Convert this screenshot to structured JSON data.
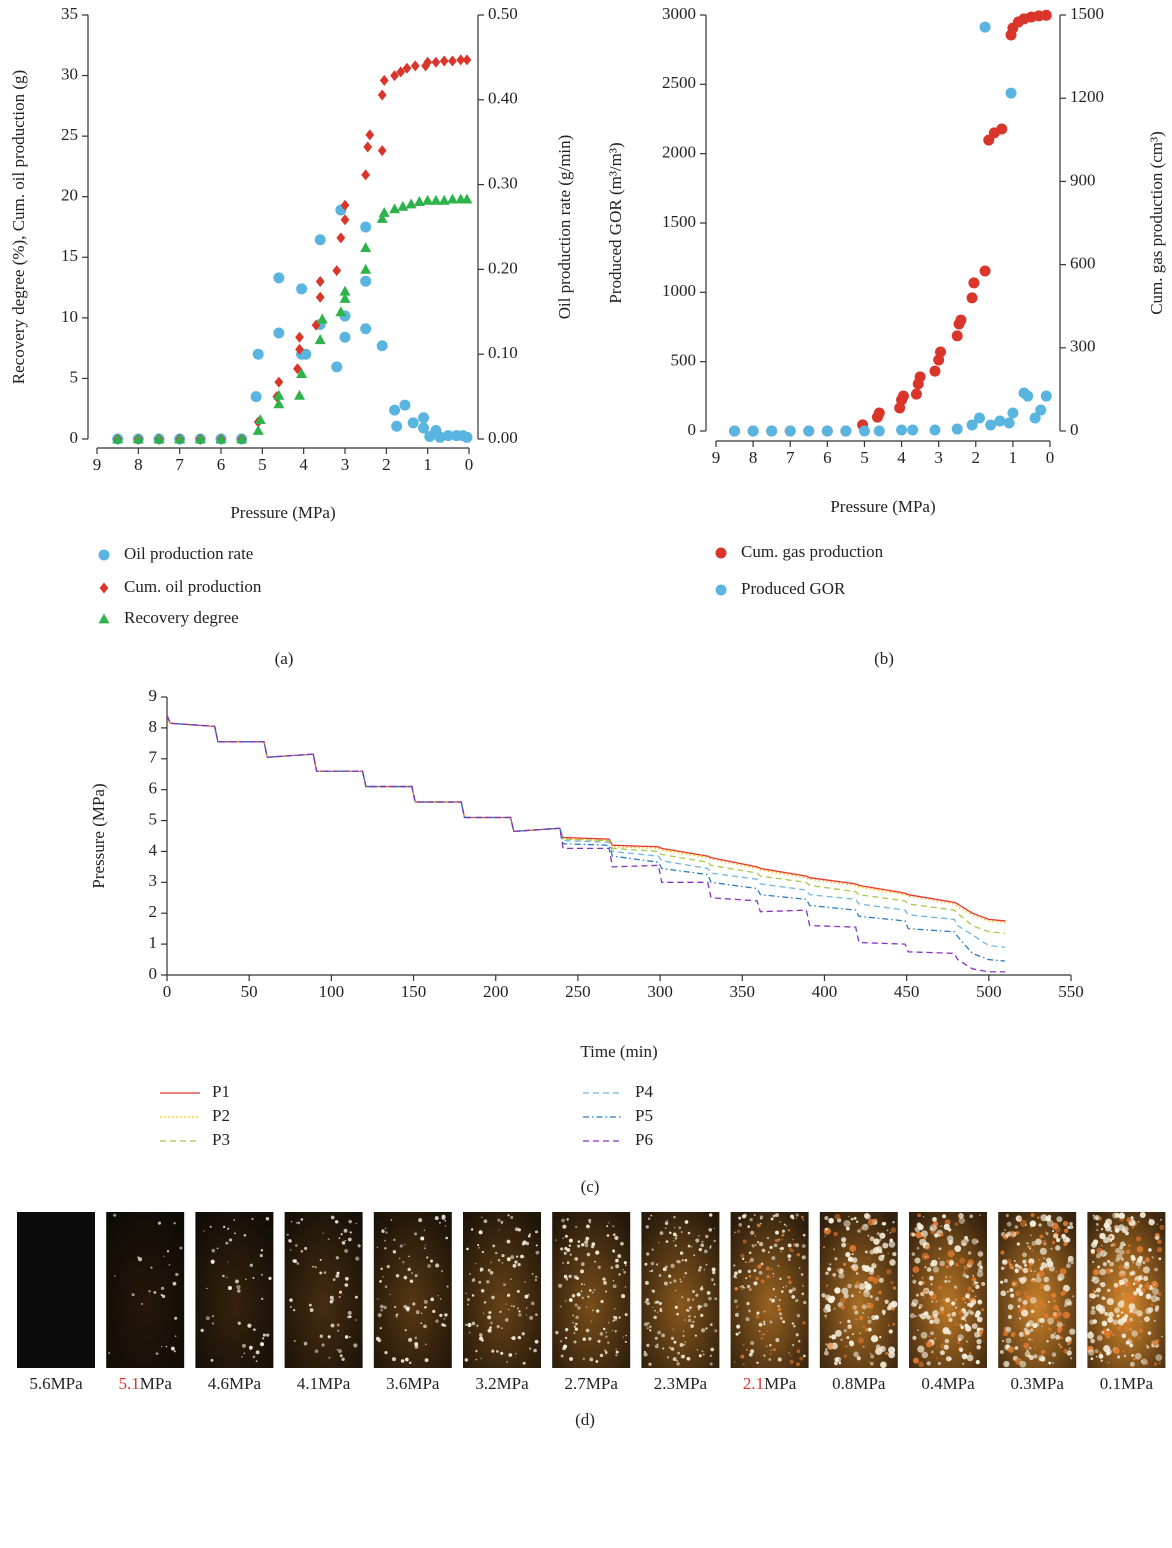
{
  "chart_data": [
    {
      "type": "scatter",
      "label": "(a)",
      "x_label": "Pressure (MPa)",
      "y_label": "Recovery degree (%), Cum. oil production (g)",
      "y2_label": "Oil production rate (g/min)",
      "xlim": [
        9,
        0
      ],
      "xticks": [
        9,
        8,
        7,
        6,
        5,
        4,
        3,
        2,
        1,
        0
      ],
      "ylim": [
        0,
        35
      ],
      "yticks": [
        0,
        5,
        10,
        15,
        20,
        25,
        30,
        35
      ],
      "y2lim": [
        0,
        0.5
      ],
      "y2ticks": [
        {
          "value": 0,
          "label": "0.00"
        },
        {
          "value": 0.1,
          "label": "0.10"
        },
        {
          "value": 0.2,
          "label": "0.20"
        },
        {
          "value": 0.3,
          "label": "0.30"
        },
        {
          "value": 0.4,
          "label": "0.40"
        },
        {
          "value": 0.5,
          "label": "0.50"
        }
      ],
      "series": [
        {
          "name": "Oil production rate",
          "color": "#5ab4e0",
          "marker": "circle",
          "axis": "y2",
          "x": [
            8.5,
            8,
            7.5,
            7,
            6.5,
            6,
            5.5,
            5.1,
            5.15,
            4.6,
            4.6,
            4.05,
            4.05,
            3.95,
            3.6,
            3.6,
            3.1,
            3.2,
            3.0,
            3.0,
            2.5,
            2.5,
            2.5,
            2.1,
            1.8,
            1.75,
            1.55,
            1.35,
            1.1,
            1.1,
            0.95,
            0.8,
            0.7,
            0.5,
            0.3,
            0.15,
            0.05
          ],
          "values": [
            0,
            0,
            0,
            0,
            0,
            0,
            0,
            0.1,
            0.05,
            0.19,
            0.125,
            0.177,
            0.1,
            0.1,
            0.235,
            0.135,
            0.27,
            0.085,
            0.12,
            0.145,
            0.25,
            0.186,
            0.13,
            0.11,
            0.034,
            0.015,
            0.04,
            0.019,
            0.025,
            0.013,
            0.003,
            0.01,
            0.002,
            0.004,
            0.004,
            0.004,
            0.002
          ]
        },
        {
          "name": "Cum. oil production",
          "color": "#d9352b",
          "marker": "diamond",
          "x": [
            8.5,
            8,
            7.5,
            7,
            6.5,
            6,
            5.5,
            5.1,
            4.6,
            4.65,
            4.1,
            4.1,
            4.15,
            3.6,
            3.6,
            3.7,
            3.2,
            3.1,
            3.0,
            3.0,
            2.5,
            2.45,
            2.4,
            2.1,
            2.1,
            2.05,
            1.8,
            1.65,
            1.5,
            1.3,
            1.05,
            1.0,
            0.8,
            0.6,
            0.4,
            0.2,
            0.05
          ],
          "values": [
            0,
            0,
            0,
            0,
            0,
            0,
            0,
            1.4,
            4.7,
            3.5,
            8.4,
            7.4,
            5.8,
            13.0,
            11.7,
            9.4,
            13.9,
            16.6,
            19.3,
            18.1,
            21.8,
            24.1,
            25.1,
            23.8,
            28.4,
            29.6,
            30.0,
            30.3,
            30.6,
            30.8,
            30.8,
            31.1,
            31.1,
            31.2,
            31.2,
            31.3,
            31.3
          ]
        },
        {
          "name": "Recovery degree",
          "color": "#2db34a",
          "marker": "triangle",
          "x": [
            8.5,
            8,
            7.5,
            7,
            6.5,
            6,
            5.5,
            5.1,
            5.05,
            4.6,
            4.6,
            4.1,
            4.05,
            3.6,
            3.55,
            3.1,
            3.0,
            3.0,
            2.5,
            2.5,
            2.1,
            2.05,
            1.8,
            1.6,
            1.4,
            1.2,
            1.0,
            0.8,
            0.6,
            0.4,
            0.2,
            0.05
          ],
          "values": [
            0,
            0,
            0,
            0,
            0,
            0,
            0,
            0.7,
            1.6,
            2.9,
            3.6,
            3.6,
            5.4,
            8.2,
            9.9,
            10.5,
            11.6,
            12.2,
            14.0,
            15.8,
            18.2,
            18.7,
            19.0,
            19.2,
            19.4,
            19.6,
            19.7,
            19.7,
            19.7,
            19.8,
            19.8,
            19.8
          ]
        }
      ]
    },
    {
      "type": "scatter",
      "label": "(b)",
      "x_label": "Pressure (MPa)",
      "y_label": "Produced GOR (m³/m³)",
      "y2_label": "Cum. gas production (cm³)",
      "xlim": [
        9,
        0
      ],
      "xticks": [
        9,
        8,
        7,
        6,
        5,
        4,
        3,
        2,
        1,
        0
      ],
      "ylim": [
        0,
        3000
      ],
      "yticks": [
        0,
        500,
        1000,
        1500,
        2000,
        2500,
        3000
      ],
      "y2lim": [
        0,
        1500
      ],
      "y2ticks": [
        0,
        300,
        600,
        900,
        1200,
        1500
      ],
      "series": [
        {
          "name": "Cum. gas production",
          "color": "#d9352b",
          "marker": "circle",
          "axis": "y2",
          "x": [
            8.5,
            8,
            7.5,
            7,
            6.5,
            6,
            5.5,
            5.05,
            4.65,
            4.6,
            4.05,
            4.0,
            3.95,
            3.6,
            3.55,
            3.5,
            3.1,
            3.0,
            2.95,
            2.5,
            2.45,
            2.4,
            2.1,
            2.05,
            1.75,
            1.65,
            1.5,
            1.3,
            1.05,
            1.0,
            0.85,
            0.7,
            0.5,
            0.3,
            0.1
          ],
          "values": [
            0,
            0,
            0,
            0,
            0,
            0,
            0,
            22,
            50,
            65,
            83,
            112,
            126,
            133,
            170,
            195,
            216,
            256,
            285,
            343,
            386,
            400,
            480,
            534,
            577,
            1049,
            1075,
            1089,
            1428,
            1453,
            1475,
            1486,
            1493,
            1497,
            1499
          ]
        },
        {
          "name": "Produced GOR",
          "color": "#5ab4e0",
          "marker": "circle",
          "x": [
            8.5,
            8,
            7.5,
            7,
            6.5,
            6,
            5.5,
            5.0,
            4.6,
            4.0,
            3.7,
            3.1,
            2.5,
            2.1,
            1.9,
            1.75,
            1.6,
            1.35,
            1.1,
            1.05,
            1.0,
            0.7,
            0.6,
            0.4,
            0.25,
            0.1
          ],
          "values": [
            0,
            0,
            0,
            0,
            0,
            0,
            0,
            0,
            0,
            7,
            7,
            7,
            14,
            43,
            94,
            2913,
            43,
            72,
            58,
            2437,
            130,
            274,
            252,
            94,
            151,
            252
          ]
        }
      ]
    },
    {
      "type": "line",
      "label": "(c)",
      "x_label": "Time (min)",
      "y_label": "Pressure (MPa)",
      "xlim": [
        0,
        550
      ],
      "xticks": [
        0,
        50,
        100,
        150,
        200,
        250,
        300,
        350,
        400,
        450,
        500,
        550
      ],
      "ylim": [
        0,
        9
      ],
      "yticks": [
        0,
        1,
        2,
        3,
        4,
        5,
        6,
        7,
        8,
        9
      ],
      "x": [
        0,
        2,
        29,
        31,
        59,
        61,
        89,
        91,
        119,
        121,
        149,
        151,
        179,
        181,
        209,
        211,
        239,
        241,
        269,
        271,
        299,
        301,
        329,
        331,
        359,
        361,
        389,
        391,
        419,
        421,
        449,
        451,
        479,
        481,
        490,
        500,
        510
      ],
      "series": [
        {
          "name": "P1",
          "color": "#e8362b",
          "linestyle": "solid",
          "values": [
            8.4,
            8.15,
            8.05,
            7.55,
            7.55,
            7.05,
            7.15,
            6.6,
            6.6,
            6.1,
            6.1,
            5.6,
            5.6,
            5.1,
            5.1,
            4.65,
            4.75,
            4.45,
            4.4,
            4.2,
            4.15,
            4.1,
            3.85,
            3.8,
            3.5,
            3.45,
            3.2,
            3.15,
            2.95,
            2.9,
            2.65,
            2.6,
            2.35,
            2.3,
            2.0,
            1.8,
            1.75
          ]
        },
        {
          "name": "P2",
          "color": "#f5b800",
          "linestyle": "dotted",
          "values": [
            8.4,
            8.15,
            8.05,
            7.55,
            7.55,
            7.05,
            7.15,
            6.6,
            6.6,
            6.1,
            6.1,
            5.6,
            5.6,
            5.1,
            5.1,
            4.65,
            4.75,
            4.4,
            4.35,
            4.15,
            4.1,
            4.05,
            3.8,
            3.75,
            3.45,
            3.4,
            3.15,
            3.1,
            2.9,
            2.85,
            2.6,
            2.55,
            2.3,
            2.2,
            1.95,
            1.75,
            1.7
          ]
        },
        {
          "name": "P3",
          "color": "#a8c84a",
          "linestyle": "dashed",
          "values": [
            8.4,
            8.15,
            8.05,
            7.55,
            7.55,
            7.05,
            7.15,
            6.6,
            6.6,
            6.1,
            6.1,
            5.6,
            5.6,
            5.1,
            5.1,
            4.65,
            4.75,
            4.4,
            4.35,
            4.1,
            4.0,
            3.9,
            3.65,
            3.55,
            3.3,
            3.2,
            3.0,
            2.9,
            2.7,
            2.6,
            2.4,
            2.3,
            2.1,
            2.0,
            1.6,
            1.4,
            1.35
          ]
        },
        {
          "name": "P4",
          "color": "#6fb6e0",
          "linestyle": "dashed",
          "values": [
            8.4,
            8.15,
            8.05,
            7.55,
            7.55,
            7.05,
            7.15,
            6.6,
            6.6,
            6.1,
            6.1,
            5.6,
            5.6,
            5.1,
            5.1,
            4.65,
            4.75,
            4.35,
            4.3,
            4.0,
            3.85,
            3.7,
            3.45,
            3.3,
            3.1,
            2.95,
            2.75,
            2.6,
            2.45,
            2.3,
            2.1,
            1.95,
            1.8,
            1.6,
            1.3,
            0.95,
            0.9
          ]
        },
        {
          "name": "P5",
          "color": "#2a78c0",
          "linestyle": "dashdot",
          "values": [
            8.4,
            8.15,
            8.05,
            7.55,
            7.55,
            7.05,
            7.15,
            6.6,
            6.6,
            6.1,
            6.1,
            5.6,
            5.6,
            5.1,
            5.1,
            4.65,
            4.75,
            4.25,
            4.2,
            3.85,
            3.65,
            3.45,
            3.25,
            3.0,
            2.8,
            2.6,
            2.45,
            2.25,
            2.1,
            1.9,
            1.75,
            1.5,
            1.4,
            1.25,
            0.7,
            0.5,
            0.45
          ]
        },
        {
          "name": "P6",
          "color": "#8a2fc0",
          "linestyle": "dashed",
          "values": [
            8.4,
            8.15,
            8.05,
            7.55,
            7.55,
            7.05,
            7.15,
            6.6,
            6.6,
            6.1,
            6.1,
            5.6,
            5.6,
            5.1,
            5.1,
            4.65,
            4.75,
            4.1,
            4.1,
            3.5,
            3.55,
            3.0,
            3.0,
            2.5,
            2.4,
            2.05,
            2.1,
            1.6,
            1.55,
            1.05,
            1.0,
            0.75,
            0.7,
            0.5,
            0.2,
            0.1,
            0.1
          ]
        }
      ]
    }
  ],
  "image_strip": {
    "label": "(d)",
    "frames": [
      {
        "pressure": "5.6",
        "unit": "MPa",
        "highlight": false
      },
      {
        "pressure": "5.1",
        "unit": "MPa",
        "highlight": true
      },
      {
        "pressure": "4.6",
        "unit": "MPa",
        "highlight": false
      },
      {
        "pressure": "4.1",
        "unit": "MPa",
        "highlight": false
      },
      {
        "pressure": "3.6",
        "unit": "MPa",
        "highlight": false
      },
      {
        "pressure": "3.2",
        "unit": "MPa",
        "highlight": false
      },
      {
        "pressure": "2.7",
        "unit": "MPa",
        "highlight": false
      },
      {
        "pressure": "2.3",
        "unit": "MPa",
        "highlight": false
      },
      {
        "pressure": "2.1",
        "unit": "MPa",
        "highlight": true
      },
      {
        "pressure": "0.8",
        "unit": "MPa",
        "highlight": false
      },
      {
        "pressure": "0.4",
        "unit": "MPa",
        "highlight": false
      },
      {
        "pressure": "0.3",
        "unit": "MPa",
        "highlight": false
      },
      {
        "pressure": "0.1",
        "unit": "MPa",
        "highlight": false
      }
    ]
  }
}
